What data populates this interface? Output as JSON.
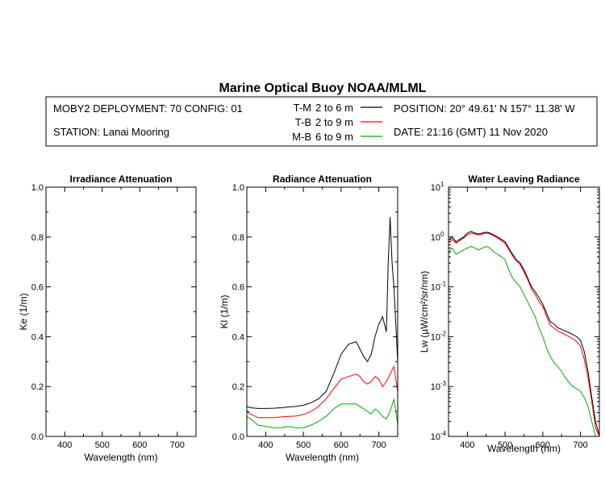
{
  "title": "Marine Optical Buoy NOAA/MLML",
  "header": {
    "deployment": "MOBY2 DEPLOYMENT: 70 CONFIG: 01",
    "station": "STATION: Lanai Mooring",
    "position": "POSITION: 20° 49.61' N   157° 11.38' W",
    "date": "DATE: 21:16 (GMT) 11 Nov 2020"
  },
  "legend": [
    {
      "code": "T-M",
      "range": "2 to 6  m",
      "color": "#000000"
    },
    {
      "code": "T-B",
      "range": "2 to 9  m",
      "color": "#ff0000"
    },
    {
      "code": "M-B",
      "range": "6 to 9  m",
      "color": "#00aa00"
    }
  ],
  "chart_data": [
    {
      "type": "line",
      "title": "Irradiance Attenuation",
      "xlabel": "Wavelength (nm)",
      "ylabel": "Ke  (1/m)",
      "xlim": [
        350,
        750
      ],
      "ylim": [
        0,
        1
      ],
      "xticks": [
        "400",
        "500",
        "600",
        "700"
      ],
      "yticks": [
        "0.0",
        "0.2",
        "0.4",
        "0.6",
        "0.8",
        "1.0"
      ],
      "series": []
    },
    {
      "type": "line",
      "title": "Radiance Attenuation",
      "xlabel": "Wavelength (nm)",
      "ylabel": "Kl  (1/m)",
      "xlim": [
        350,
        750
      ],
      "ylim": [
        0,
        1
      ],
      "xticks": [
        "400",
        "500",
        "600",
        "700"
      ],
      "yticks": [
        "0.0",
        "0.2",
        "0.4",
        "0.6",
        "0.8",
        "1.0"
      ],
      "series": [
        {
          "name": "T-M",
          "color": "#000000",
          "x": [
            350,
            360,
            380,
            400,
            420,
            440,
            460,
            480,
            500,
            520,
            540,
            560,
            580,
            600,
            620,
            640,
            650,
            660,
            670,
            680,
            690,
            700,
            710,
            720,
            725,
            730,
            735,
            740,
            745,
            750
          ],
          "y": [
            0.12,
            0.115,
            0.112,
            0.112,
            0.113,
            0.115,
            0.118,
            0.12,
            0.125,
            0.135,
            0.15,
            0.18,
            0.25,
            0.33,
            0.37,
            0.38,
            0.35,
            0.32,
            0.3,
            0.33,
            0.4,
            0.45,
            0.48,
            0.42,
            0.7,
            0.88,
            0.7,
            0.6,
            0.45,
            0.3
          ]
        },
        {
          "name": "T-B",
          "color": "#ff0000",
          "x": [
            350,
            360,
            380,
            400,
            420,
            440,
            460,
            480,
            500,
            520,
            540,
            560,
            580,
            600,
            620,
            640,
            650,
            660,
            670,
            680,
            690,
            700,
            710,
            720,
            730,
            740,
            750
          ],
          "y": [
            0.1,
            0.09,
            0.075,
            0.075,
            0.075,
            0.078,
            0.08,
            0.082,
            0.088,
            0.1,
            0.12,
            0.15,
            0.19,
            0.23,
            0.24,
            0.25,
            0.24,
            0.22,
            0.21,
            0.22,
            0.24,
            0.23,
            0.2,
            0.22,
            0.25,
            0.28,
            0.18
          ]
        },
        {
          "name": "M-B",
          "color": "#00aa00",
          "x": [
            350,
            360,
            380,
            400,
            420,
            440,
            460,
            480,
            500,
            520,
            540,
            560,
            580,
            600,
            620,
            640,
            650,
            660,
            670,
            680,
            690,
            700,
            710,
            720,
            730,
            740,
            750
          ],
          "y": [
            0.08,
            0.07,
            0.045,
            0.04,
            0.035,
            0.035,
            0.04,
            0.035,
            0.035,
            0.045,
            0.06,
            0.08,
            0.11,
            0.13,
            0.13,
            0.13,
            0.12,
            0.11,
            0.1,
            0.09,
            0.11,
            0.1,
            0.08,
            0.07,
            0.1,
            0.15,
            0.05
          ]
        }
      ]
    },
    {
      "type": "line",
      "title": "Water Leaving Radiance",
      "xlabel": "Wavelength (nm)",
      "ylabel": "Lw  (µW/cm²/sr/nm)",
      "xlim": [
        350,
        750
      ],
      "ylim_log10": [
        -4,
        1
      ],
      "xticks": [
        "400",
        "500",
        "600",
        "700"
      ],
      "yticks_base": "10",
      "yticks_exp": [
        "-4",
        "-3",
        "-2",
        "-1",
        "0",
        "1"
      ],
      "series": [
        {
          "name": "T-M",
          "color": "#000000",
          "x": [
            352,
            360,
            370,
            380,
            390,
            400,
            410,
            420,
            430,
            440,
            450,
            460,
            470,
            480,
            490,
            500,
            510,
            520,
            530,
            540,
            550,
            560,
            570,
            580,
            590,
            600,
            610,
            620,
            630,
            640,
            650,
            660,
            670,
            680,
            690,
            700,
            710,
            720,
            730,
            740,
            750
          ],
          "y": [
            0.9,
            1.0,
            0.8,
            0.9,
            1.0,
            1.2,
            1.3,
            1.2,
            1.15,
            1.2,
            1.25,
            1.2,
            1.1,
            1.0,
            0.9,
            0.8,
            0.6,
            0.45,
            0.35,
            0.3,
            0.22,
            0.15,
            0.1,
            0.08,
            0.06,
            0.045,
            0.03,
            0.02,
            0.018,
            0.015,
            0.014,
            0.013,
            0.012,
            0.011,
            0.01,
            0.0085,
            0.005,
            0.002,
            0.0006,
            0.0002,
            0.0001
          ]
        },
        {
          "name": "T-B",
          "color": "#ff0000",
          "x": [
            352,
            360,
            370,
            380,
            390,
            400,
            410,
            420,
            430,
            440,
            450,
            460,
            470,
            480,
            490,
            500,
            510,
            520,
            530,
            540,
            550,
            560,
            570,
            580,
            590,
            600,
            610,
            620,
            630,
            640,
            650,
            660,
            670,
            680,
            690,
            700,
            710,
            720,
            730,
            740,
            750
          ],
          "y": [
            0.8,
            0.9,
            0.75,
            0.85,
            0.95,
            1.1,
            1.2,
            1.15,
            1.1,
            1.15,
            1.2,
            1.15,
            1.05,
            0.95,
            0.85,
            0.75,
            0.55,
            0.42,
            0.33,
            0.28,
            0.2,
            0.14,
            0.09,
            0.07,
            0.05,
            0.04,
            0.026,
            0.017,
            0.015,
            0.013,
            0.012,
            0.011,
            0.01,
            0.009,
            0.008,
            0.0065,
            0.0035,
            0.0015,
            0.0005,
            0.00015,
            0.0001
          ]
        },
        {
          "name": "M-B",
          "color": "#00aa00",
          "x": [
            352,
            360,
            370,
            380,
            390,
            400,
            410,
            420,
            430,
            440,
            450,
            460,
            470,
            480,
            490,
            500,
            510,
            520,
            530,
            540,
            550,
            560,
            570,
            580,
            590,
            600,
            610,
            620,
            630,
            640,
            650,
            660,
            670,
            680,
            690,
            700,
            710,
            720,
            730,
            740,
            750
          ],
          "y": [
            0.5,
            0.6,
            0.45,
            0.5,
            0.55,
            0.6,
            0.65,
            0.6,
            0.55,
            0.6,
            0.65,
            0.6,
            0.5,
            0.45,
            0.4,
            0.35,
            0.22,
            0.15,
            0.12,
            0.1,
            0.07,
            0.05,
            0.035,
            0.025,
            0.015,
            0.01,
            0.006,
            0.004,
            0.003,
            0.0025,
            0.002,
            0.0015,
            0.0012,
            0.001,
            0.0009,
            0.0008,
            0.0006,
            0.0004,
            0.0002,
            0.0001,
            0.0001
          ]
        }
      ]
    }
  ]
}
